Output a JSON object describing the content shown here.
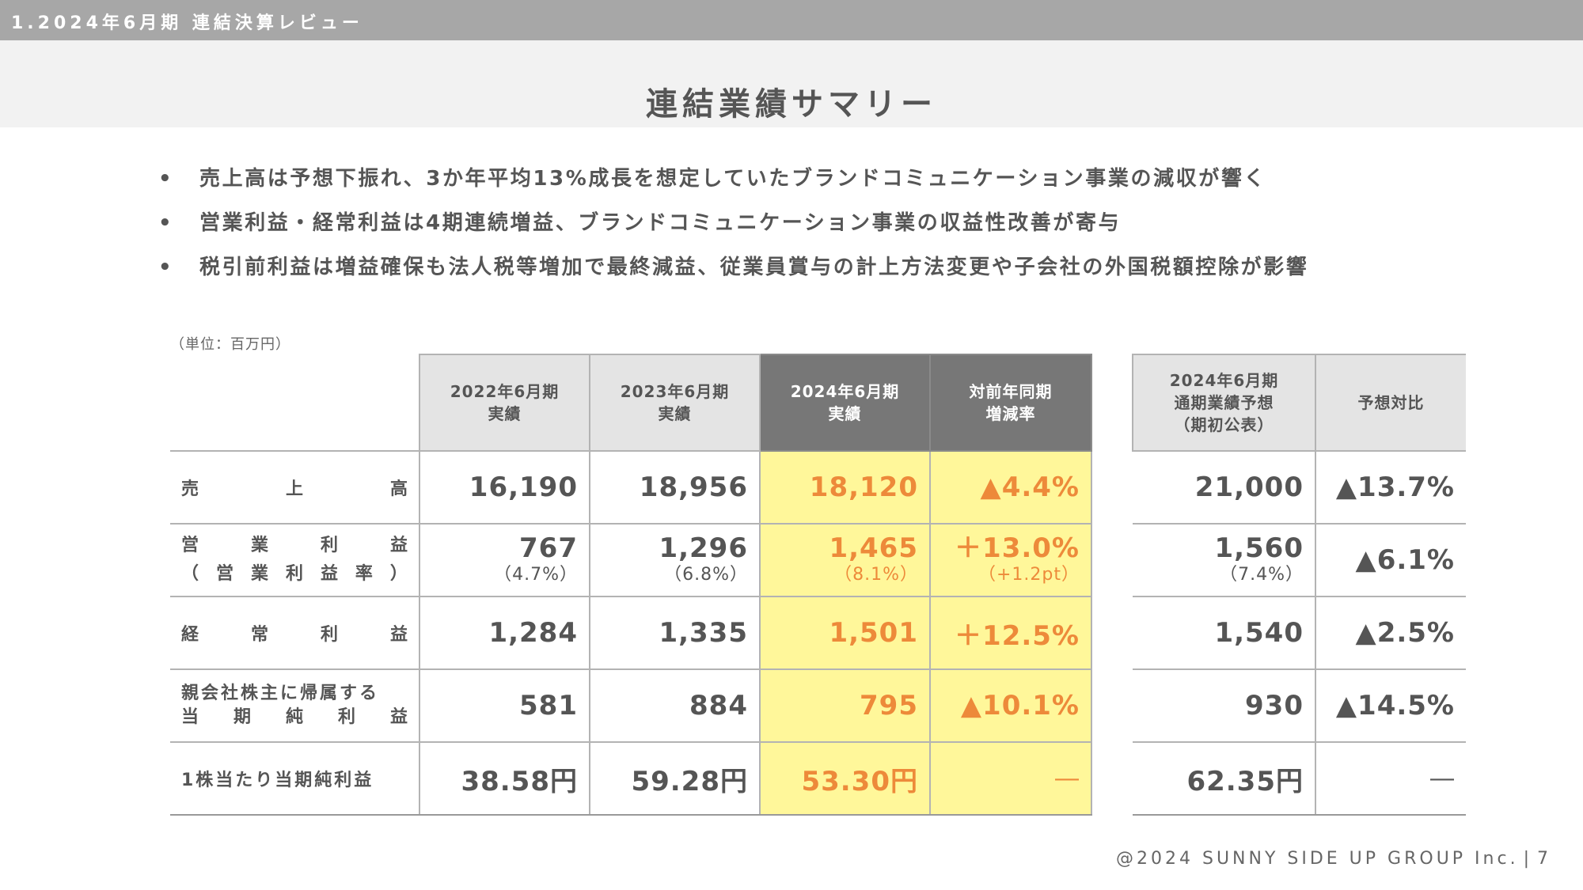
{
  "header": {
    "section": "1.2024年6月期 連結決算レビュー",
    "title": "連結業績サマリー"
  },
  "bullets": [
    "売上高は予想下振れ、3か年平均13%成長を想定していたブランドコミュニケーション事業の減収が響く",
    "営業利益・経常利益は4期連続増益、ブランドコミュニケーション事業の収益性改善が寄与",
    "税引前利益は増益確保も法人税等増加で最終減益、従業員賞与の計上方法変更や子会社の外国税額控除が影響"
  ],
  "bullet_marker": "•",
  "unit_note": "（単位：百万円）",
  "table": {
    "headers": {
      "fy2022": "2022年6月期\n実績",
      "fy2023": "2023年6月期\n実績",
      "fy2024": "2024年6月期\n実績",
      "yoy": "対前年同期\n増減率"
    },
    "rows": {
      "sales": {
        "label_chars": [
          "売",
          "上",
          "高"
        ],
        "fy2022": "16,190",
        "fy2023": "18,956",
        "fy2024": "18,120",
        "yoy": "▲4.4%"
      },
      "op": {
        "label_chars": [
          "営",
          "業",
          "利",
          "益"
        ],
        "label2_chars": [
          "（",
          "営",
          "業",
          "利",
          "益",
          "率",
          "）"
        ],
        "fy2022": "767",
        "fy2022_sub": "（4.7%）",
        "fy2023": "1,296",
        "fy2023_sub": "（6.8%）",
        "fy2024": "1,465",
        "fy2024_sub": "（8.1%）",
        "yoy": "＋13.0%",
        "yoy_sub": "（+1.2pt）"
      },
      "ord": {
        "label_chars": [
          "経",
          "常",
          "利",
          "益"
        ],
        "fy2022": "1,284",
        "fy2023": "1,335",
        "fy2024": "1,501",
        "yoy": "＋12.5%"
      },
      "net": {
        "label_line1": "親会社株主に帰属する",
        "label2_chars": [
          "当",
          "期",
          "純",
          "利",
          "益"
        ],
        "fy2022": "581",
        "fy2023": "884",
        "fy2024": "795",
        "yoy": "▲10.1%"
      },
      "eps": {
        "label": "1株当たり当期純利益",
        "fy2022": "38.58円",
        "fy2023": "59.28円",
        "fy2024": "53.30円",
        "yoy": "―"
      }
    }
  },
  "forecast": {
    "headers": {
      "forecast": "2024年6月期\n通期業績予想\n（期初公表）",
      "vs": "予想対比"
    },
    "rows": {
      "sales": {
        "forecast": "21,000",
        "vs": "▲13.7%"
      },
      "op": {
        "forecast": "1,560",
        "forecast_sub": "（7.4%）",
        "vs": "▲6.1%"
      },
      "ord": {
        "forecast": "1,540",
        "vs": "▲2.5%"
      },
      "net": {
        "forecast": "930",
        "vs": "▲14.5%"
      },
      "eps": {
        "forecast": "62.35円",
        "vs": "―"
      }
    }
  },
  "footer": {
    "copyright": "@2024 SUNNY SIDE UP GROUP Inc.",
    "separator": "|",
    "page": "7"
  },
  "colors": {
    "highlight_bg": "#fff79a",
    "highlight_text": "#ed8a3a",
    "header_dark": "#777777",
    "header_light": "#e4e4e4"
  }
}
